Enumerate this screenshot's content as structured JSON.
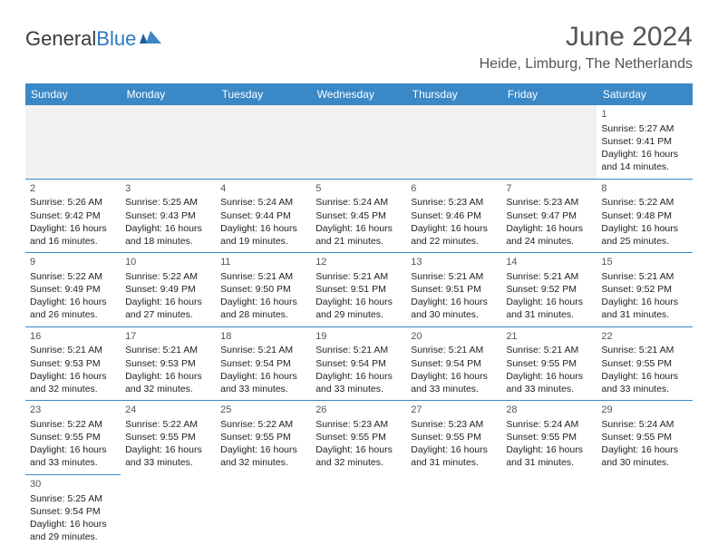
{
  "brand": {
    "name_a": "General",
    "name_b": "Blue"
  },
  "title": "June 2024",
  "location": "Heide, Limburg, The Netherlands",
  "colors": {
    "header_bg": "#3b88c6",
    "header_fg": "#ffffff",
    "border": "#3b88c6",
    "empty_bg": "#f2f2f2",
    "text": "#222222",
    "title_color": "#555555"
  },
  "day_headers": [
    "Sunday",
    "Monday",
    "Tuesday",
    "Wednesday",
    "Thursday",
    "Friday",
    "Saturday"
  ],
  "weeks": [
    [
      null,
      null,
      null,
      null,
      null,
      null,
      {
        "n": "1",
        "sunrise": "Sunrise: 5:27 AM",
        "sunset": "Sunset: 9:41 PM",
        "day1": "Daylight: 16 hours",
        "day2": "and 14 minutes."
      }
    ],
    [
      {
        "n": "2",
        "sunrise": "Sunrise: 5:26 AM",
        "sunset": "Sunset: 9:42 PM",
        "day1": "Daylight: 16 hours",
        "day2": "and 16 minutes."
      },
      {
        "n": "3",
        "sunrise": "Sunrise: 5:25 AM",
        "sunset": "Sunset: 9:43 PM",
        "day1": "Daylight: 16 hours",
        "day2": "and 18 minutes."
      },
      {
        "n": "4",
        "sunrise": "Sunrise: 5:24 AM",
        "sunset": "Sunset: 9:44 PM",
        "day1": "Daylight: 16 hours",
        "day2": "and 19 minutes."
      },
      {
        "n": "5",
        "sunrise": "Sunrise: 5:24 AM",
        "sunset": "Sunset: 9:45 PM",
        "day1": "Daylight: 16 hours",
        "day2": "and 21 minutes."
      },
      {
        "n": "6",
        "sunrise": "Sunrise: 5:23 AM",
        "sunset": "Sunset: 9:46 PM",
        "day1": "Daylight: 16 hours",
        "day2": "and 22 minutes."
      },
      {
        "n": "7",
        "sunrise": "Sunrise: 5:23 AM",
        "sunset": "Sunset: 9:47 PM",
        "day1": "Daylight: 16 hours",
        "day2": "and 24 minutes."
      },
      {
        "n": "8",
        "sunrise": "Sunrise: 5:22 AM",
        "sunset": "Sunset: 9:48 PM",
        "day1": "Daylight: 16 hours",
        "day2": "and 25 minutes."
      }
    ],
    [
      {
        "n": "9",
        "sunrise": "Sunrise: 5:22 AM",
        "sunset": "Sunset: 9:49 PM",
        "day1": "Daylight: 16 hours",
        "day2": "and 26 minutes."
      },
      {
        "n": "10",
        "sunrise": "Sunrise: 5:22 AM",
        "sunset": "Sunset: 9:49 PM",
        "day1": "Daylight: 16 hours",
        "day2": "and 27 minutes."
      },
      {
        "n": "11",
        "sunrise": "Sunrise: 5:21 AM",
        "sunset": "Sunset: 9:50 PM",
        "day1": "Daylight: 16 hours",
        "day2": "and 28 minutes."
      },
      {
        "n": "12",
        "sunrise": "Sunrise: 5:21 AM",
        "sunset": "Sunset: 9:51 PM",
        "day1": "Daylight: 16 hours",
        "day2": "and 29 minutes."
      },
      {
        "n": "13",
        "sunrise": "Sunrise: 5:21 AM",
        "sunset": "Sunset: 9:51 PM",
        "day1": "Daylight: 16 hours",
        "day2": "and 30 minutes."
      },
      {
        "n": "14",
        "sunrise": "Sunrise: 5:21 AM",
        "sunset": "Sunset: 9:52 PM",
        "day1": "Daylight: 16 hours",
        "day2": "and 31 minutes."
      },
      {
        "n": "15",
        "sunrise": "Sunrise: 5:21 AM",
        "sunset": "Sunset: 9:52 PM",
        "day1": "Daylight: 16 hours",
        "day2": "and 31 minutes."
      }
    ],
    [
      {
        "n": "16",
        "sunrise": "Sunrise: 5:21 AM",
        "sunset": "Sunset: 9:53 PM",
        "day1": "Daylight: 16 hours",
        "day2": "and 32 minutes."
      },
      {
        "n": "17",
        "sunrise": "Sunrise: 5:21 AM",
        "sunset": "Sunset: 9:53 PM",
        "day1": "Daylight: 16 hours",
        "day2": "and 32 minutes."
      },
      {
        "n": "18",
        "sunrise": "Sunrise: 5:21 AM",
        "sunset": "Sunset: 9:54 PM",
        "day1": "Daylight: 16 hours",
        "day2": "and 33 minutes."
      },
      {
        "n": "19",
        "sunrise": "Sunrise: 5:21 AM",
        "sunset": "Sunset: 9:54 PM",
        "day1": "Daylight: 16 hours",
        "day2": "and 33 minutes."
      },
      {
        "n": "20",
        "sunrise": "Sunrise: 5:21 AM",
        "sunset": "Sunset: 9:54 PM",
        "day1": "Daylight: 16 hours",
        "day2": "and 33 minutes."
      },
      {
        "n": "21",
        "sunrise": "Sunrise: 5:21 AM",
        "sunset": "Sunset: 9:55 PM",
        "day1": "Daylight: 16 hours",
        "day2": "and 33 minutes."
      },
      {
        "n": "22",
        "sunrise": "Sunrise: 5:21 AM",
        "sunset": "Sunset: 9:55 PM",
        "day1": "Daylight: 16 hours",
        "day2": "and 33 minutes."
      }
    ],
    [
      {
        "n": "23",
        "sunrise": "Sunrise: 5:22 AM",
        "sunset": "Sunset: 9:55 PM",
        "day1": "Daylight: 16 hours",
        "day2": "and 33 minutes."
      },
      {
        "n": "24",
        "sunrise": "Sunrise: 5:22 AM",
        "sunset": "Sunset: 9:55 PM",
        "day1": "Daylight: 16 hours",
        "day2": "and 33 minutes."
      },
      {
        "n": "25",
        "sunrise": "Sunrise: 5:22 AM",
        "sunset": "Sunset: 9:55 PM",
        "day1": "Daylight: 16 hours",
        "day2": "and 32 minutes."
      },
      {
        "n": "26",
        "sunrise": "Sunrise: 5:23 AM",
        "sunset": "Sunset: 9:55 PM",
        "day1": "Daylight: 16 hours",
        "day2": "and 32 minutes."
      },
      {
        "n": "27",
        "sunrise": "Sunrise: 5:23 AM",
        "sunset": "Sunset: 9:55 PM",
        "day1": "Daylight: 16 hours",
        "day2": "and 31 minutes."
      },
      {
        "n": "28",
        "sunrise": "Sunrise: 5:24 AM",
        "sunset": "Sunset: 9:55 PM",
        "day1": "Daylight: 16 hours",
        "day2": "and 31 minutes."
      },
      {
        "n": "29",
        "sunrise": "Sunrise: 5:24 AM",
        "sunset": "Sunset: 9:55 PM",
        "day1": "Daylight: 16 hours",
        "day2": "and 30 minutes."
      }
    ],
    [
      {
        "n": "30",
        "sunrise": "Sunrise: 5:25 AM",
        "sunset": "Sunset: 9:54 PM",
        "day1": "Daylight: 16 hours",
        "day2": "and 29 minutes."
      },
      null,
      null,
      null,
      null,
      null,
      null
    ]
  ]
}
